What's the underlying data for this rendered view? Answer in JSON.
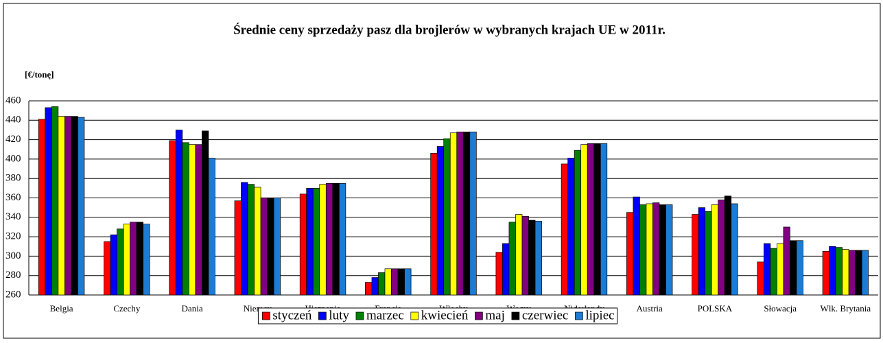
{
  "chart_data": {
    "type": "bar",
    "title": "Średnie ceny sprzedaży pasz dla brojlerów w wybranych krajach UE w 2011r.",
    "y_label": "[€/tonę]",
    "categories": [
      "Belgia",
      "Czechy",
      "Dania",
      "Niemcy",
      "Hiszpania",
      "Francja",
      "Włochy",
      "Węgry",
      "Niderlandy",
      "Austria",
      "POLSKA",
      "Słowacja",
      "Wlk. Brytania"
    ],
    "series": [
      {
        "name": "styczeń",
        "color": "#ff0000",
        "values": [
          441,
          315,
          419,
          357,
          364,
          273,
          406,
          304,
          395,
          345,
          343,
          294,
          305
        ]
      },
      {
        "name": "luty",
        "color": "#0000ff",
        "values": [
          453,
          322,
          430,
          376,
          370,
          278,
          413,
          313,
          401,
          361,
          350,
          313,
          310
        ]
      },
      {
        "name": "marzec",
        "color": "#008000",
        "values": [
          454,
          328,
          417,
          374,
          370,
          283,
          421,
          335,
          409,
          353,
          346,
          308,
          309
        ]
      },
      {
        "name": "kwiecień",
        "color": "#ffff00",
        "values": [
          444,
          333,
          415,
          371,
          374,
          287,
          427,
          343,
          415,
          354,
          353,
          313,
          307
        ]
      },
      {
        "name": "maj",
        "color": "#800080",
        "values": [
          444,
          335,
          415,
          360,
          375,
          287,
          428,
          341,
          416,
          355,
          358,
          330,
          306
        ]
      },
      {
        "name": "czerwiec",
        "color": "#000000",
        "values": [
          444,
          335,
          429,
          360,
          375,
          287,
          428,
          337,
          416,
          353,
          362,
          316,
          306
        ]
      },
      {
        "name": "lipiec",
        "color": "#1c7cd5",
        "values": [
          443,
          333,
          401,
          360,
          375,
          287,
          428,
          336,
          416,
          353,
          354,
          316,
          306
        ]
      }
    ],
    "ylim": [
      260,
      460
    ],
    "yticks": [
      260,
      280,
      300,
      320,
      340,
      360,
      380,
      400,
      420,
      440,
      460
    ],
    "grid": true,
    "legend": "bottom"
  }
}
